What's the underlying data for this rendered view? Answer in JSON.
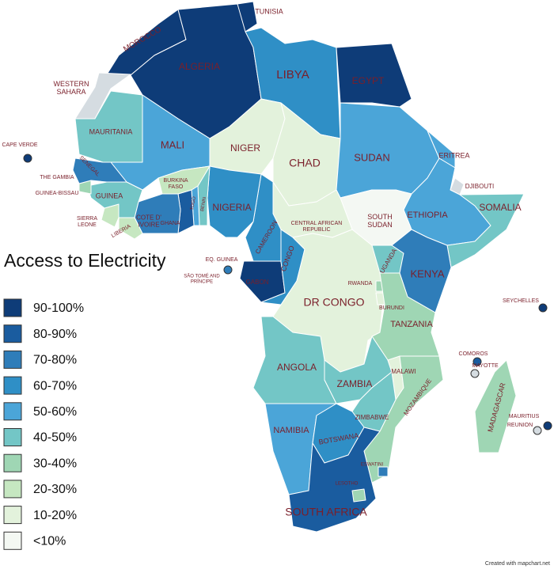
{
  "title": "Access to Electricity",
  "credit": "Created with mapchart.net",
  "legend": [
    {
      "label": "90-100%",
      "color": "#0e3c78"
    },
    {
      "label": "80-90%",
      "color": "#1a5c9f"
    },
    {
      "label": "70-80%",
      "color": "#2f7db9"
    },
    {
      "label": "60-70%",
      "color": "#2f8fc6"
    },
    {
      "label": "50-60%",
      "color": "#4ba5d8"
    },
    {
      "label": "40-50%",
      "color": "#73c6c6"
    },
    {
      "label": "30-40%",
      "color": "#9fd6b4"
    },
    {
      "label": "20-30%",
      "color": "#c6e7c1"
    },
    {
      "label": "10-20%",
      "color": "#e3f2dc"
    },
    {
      "label": "<10%",
      "color": "#f4f8f3"
    }
  ],
  "countries": [
    {
      "label": "MOROCCO",
      "color": "#0e3c78"
    },
    {
      "label": "WESTERN SAHARA",
      "color": "#d5dce1"
    },
    {
      "label": "ALGERIA",
      "color": "#0e3c78"
    },
    {
      "label": "TUNISIA",
      "color": "#0e3c78"
    },
    {
      "label": "LIBYA",
      "color": "#2f8fc6"
    },
    {
      "label": "EGYPT",
      "color": "#0e3c78"
    },
    {
      "label": "MAURITANIA",
      "color": "#73c6c6"
    },
    {
      "label": "MALI",
      "color": "#4ba5d8"
    },
    {
      "label": "NIGER",
      "color": "#e3f2dc"
    },
    {
      "label": "CHAD",
      "color": "#e3f2dc"
    },
    {
      "label": "SUDAN",
      "color": "#4ba5d8"
    },
    {
      "label": "ERITREA",
      "color": "#4ba5d8"
    },
    {
      "label": "DJIBOUTI",
      "color": "#d5dce1"
    },
    {
      "label": "ETHIOPIA",
      "color": "#4ba5d8"
    },
    {
      "label": "SOMALIA",
      "color": "#73c6c6"
    },
    {
      "label": "SOUTH SUDAN",
      "color": "#f4f8f3"
    },
    {
      "label": "CENTRAL AFRICAN REPUBLIC",
      "color": "#e3f2dc"
    },
    {
      "label": "CAMEROON",
      "color": "#2f8fc6"
    },
    {
      "label": "NIGERIA",
      "color": "#2f8fc6"
    },
    {
      "label": "BENIN",
      "color": "#73c6c6"
    },
    {
      "label": "TOGO",
      "color": "#4ba5d8"
    },
    {
      "label": "GHANA",
      "color": "#1a5c9f"
    },
    {
      "label": "BURKINA FASO",
      "color": "#c6e7c1"
    },
    {
      "label": "COTE D' IVOIRE",
      "color": "#2f7db9"
    },
    {
      "label": "LIBERIA",
      "color": "#c6e7c1"
    },
    {
      "label": "SIERRA LEONE",
      "color": "#c6e7c1"
    },
    {
      "label": "GUINEA",
      "color": "#73c6c6"
    },
    {
      "label": "GUINEA-BISSAU",
      "color": "#9fd6b4"
    },
    {
      "label": "THE GAMBIA",
      "color": "#2f8fc6"
    },
    {
      "label": "SENEGAL",
      "color": "#2f7db9"
    },
    {
      "label": "CAPE VERDE",
      "color": "#0e3c78"
    },
    {
      "label": "EQ. GUINEA",
      "color": "#2f7db9"
    },
    {
      "label": "SÃO TOMÉ AND PRÍNCIPE",
      "color": "#2f7db9"
    },
    {
      "label": "GABON",
      "color": "#0e3c78"
    },
    {
      "label": "CONGO",
      "color": "#2f8fc6"
    },
    {
      "label": "DR CONGO",
      "color": "#e3f2dc"
    },
    {
      "label": "UGANDA",
      "color": "#73c6c6"
    },
    {
      "label": "KENYA",
      "color": "#2f7db9"
    },
    {
      "label": "RWANDA",
      "color": "#9fd6b4"
    },
    {
      "label": "BURUNDI",
      "color": "#e3f2dc"
    },
    {
      "label": "TANZANIA",
      "color": "#9fd6b4"
    },
    {
      "label": "ANGOLA",
      "color": "#73c6c6"
    },
    {
      "label": "ZAMBIA",
      "color": "#73c6c6"
    },
    {
      "label": "MALAWI",
      "color": "#e3f2dc"
    },
    {
      "label": "MOZAMBIQUE",
      "color": "#9fd6b4"
    },
    {
      "label": "ZIMBABWE",
      "color": "#73c6c6"
    },
    {
      "label": "NAMIBIA",
      "color": "#4ba5d8"
    },
    {
      "label": "BOTSWANA",
      "color": "#2f8fc6"
    },
    {
      "label": "SOUTH AFRICA",
      "color": "#1a5c9f"
    },
    {
      "label": "LESOTHO",
      "color": "#9fd6b4"
    },
    {
      "label": "ESWATINI",
      "color": "#2f7db9"
    },
    {
      "label": "MADAGASCAR",
      "color": "#9fd6b4"
    },
    {
      "label": "COMOROS",
      "color": "#1a5c9f"
    },
    {
      "label": "MAYOTTE",
      "color": "#d5dce1"
    },
    {
      "label": "SEYCHELLES",
      "color": "#0e3c78"
    },
    {
      "label": "MAURITIUS",
      "color": "#0e3c78"
    },
    {
      "label": "REUNION",
      "color": "#d5dce1"
    }
  ]
}
